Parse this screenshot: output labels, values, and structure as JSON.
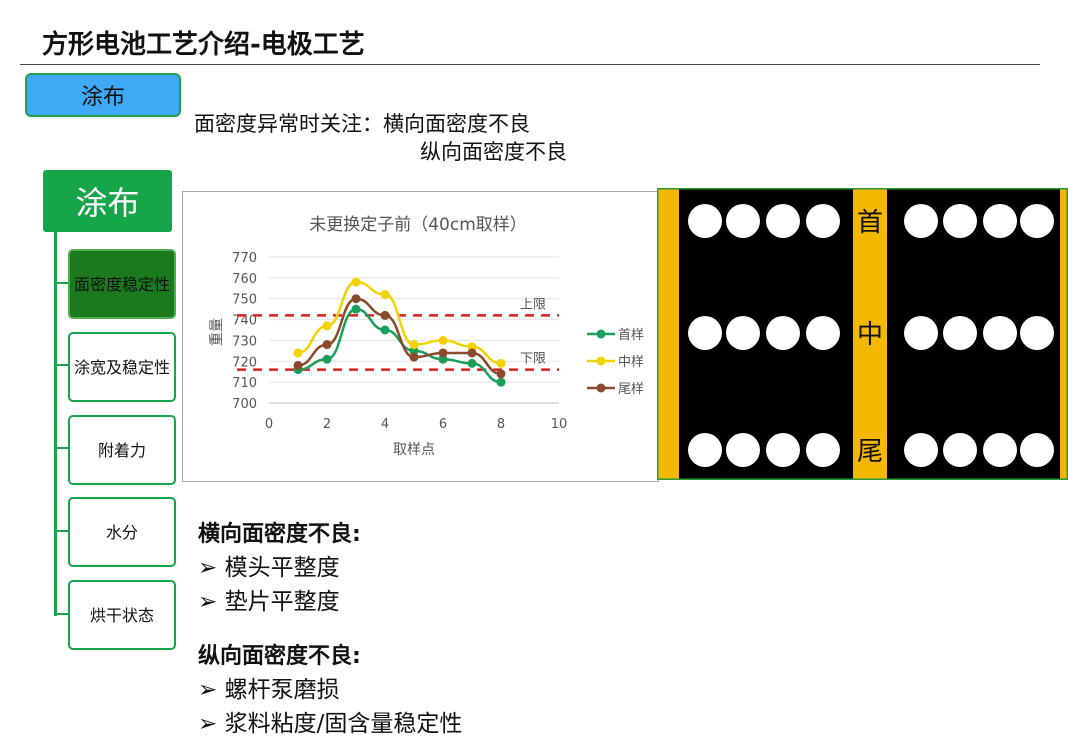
{
  "title": "方形电池工艺介绍-电极工艺",
  "tag_button": "涂布",
  "note": {
    "line1": "面密度异常时关注：横向面密度不良",
    "line2": "纵向面密度不良"
  },
  "tree": {
    "root": "涂布",
    "items": [
      {
        "label": "面密度稳定性",
        "active": true
      },
      {
        "label": "涂宽及稳定性"
      },
      {
        "label": "附着力"
      },
      {
        "label": "水分"
      },
      {
        "label": "烘干状态"
      }
    ]
  },
  "chart_data": {
    "type": "line",
    "title": "未更换定子前（40cm取样）",
    "xlabel": "取样点",
    "ylabel": "重量",
    "xlim": [
      0,
      10
    ],
    "ylim": [
      700,
      770
    ],
    "xticks": [
      "0",
      "2",
      "4",
      "6",
      "8",
      "10"
    ],
    "yticks": [
      "700",
      "710",
      "720",
      "730",
      "740",
      "750",
      "760",
      "770"
    ],
    "grid": "horizontal",
    "legend": "right",
    "x": [
      1,
      2,
      3,
      4,
      5,
      6,
      7,
      8
    ],
    "series": [
      {
        "name": "首样",
        "color": "#1a9e5a",
        "values": [
          716,
          721,
          745,
          735,
          725,
          721,
          719,
          710
        ]
      },
      {
        "name": "中样",
        "color": "#f2d300",
        "values": [
          724,
          737,
          758,
          752,
          728,
          730,
          727,
          719
        ]
      },
      {
        "name": "尾样",
        "color": "#8b4a2b",
        "values": [
          718,
          728,
          750,
          742,
          722,
          724,
          724,
          714
        ]
      }
    ],
    "reference_lines": [
      {
        "label": "上限",
        "value": 742,
        "color": "#e02020"
      },
      {
        "label": "下限",
        "value": 716,
        "color": "#e02020"
      }
    ]
  },
  "diagram": {
    "labels": [
      "首",
      "中",
      "尾"
    ],
    "colors": {
      "bg": "#000000",
      "strip": "#f5b800",
      "dot": "#ffffff"
    }
  },
  "sections": [
    {
      "heading": "横向面密度不良:",
      "items": [
        "模头平整度",
        "垫片平整度"
      ]
    },
    {
      "heading": "纵向面密度不良:",
      "items": [
        "螺杆泵磨损",
        "浆料粘度/固含量稳定性"
      ]
    }
  ],
  "bullet_symbol": "➢"
}
